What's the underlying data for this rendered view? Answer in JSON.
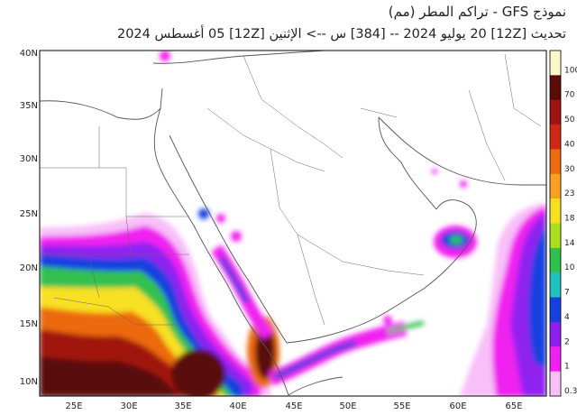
{
  "header": {
    "title": "نموذج GFS - تراكم المطر (مم)",
    "subtitle": "تحديث [12Z] 20 يوليو 2024 -- [384] س --> الإثنين [12Z] 05 أغسطس 2024"
  },
  "map": {
    "lat_labels": [
      "40N",
      "35N",
      "30N",
      "25N",
      "20N",
      "15N",
      "10N"
    ],
    "lon_labels": [
      "25E",
      "30E",
      "35E",
      "40E",
      "45E",
      "50E",
      "55E",
      "60E",
      "65E"
    ]
  },
  "colorbar": {
    "labels": [
      "100",
      "70",
      "50",
      "40",
      "30",
      "23",
      "18",
      "14",
      "10",
      "7",
      "4",
      "2",
      "1",
      "0.3"
    ],
    "colors": [
      "#f8f8c8",
      "#5a0c08",
      "#a01410",
      "#d02818",
      "#ec6a10",
      "#f8a020",
      "#f8e020",
      "#a8e020",
      "#30c050",
      "#20c0c0",
      "#1840e0",
      "#9020f0",
      "#f020f0",
      "#f8c0f8"
    ]
  }
}
